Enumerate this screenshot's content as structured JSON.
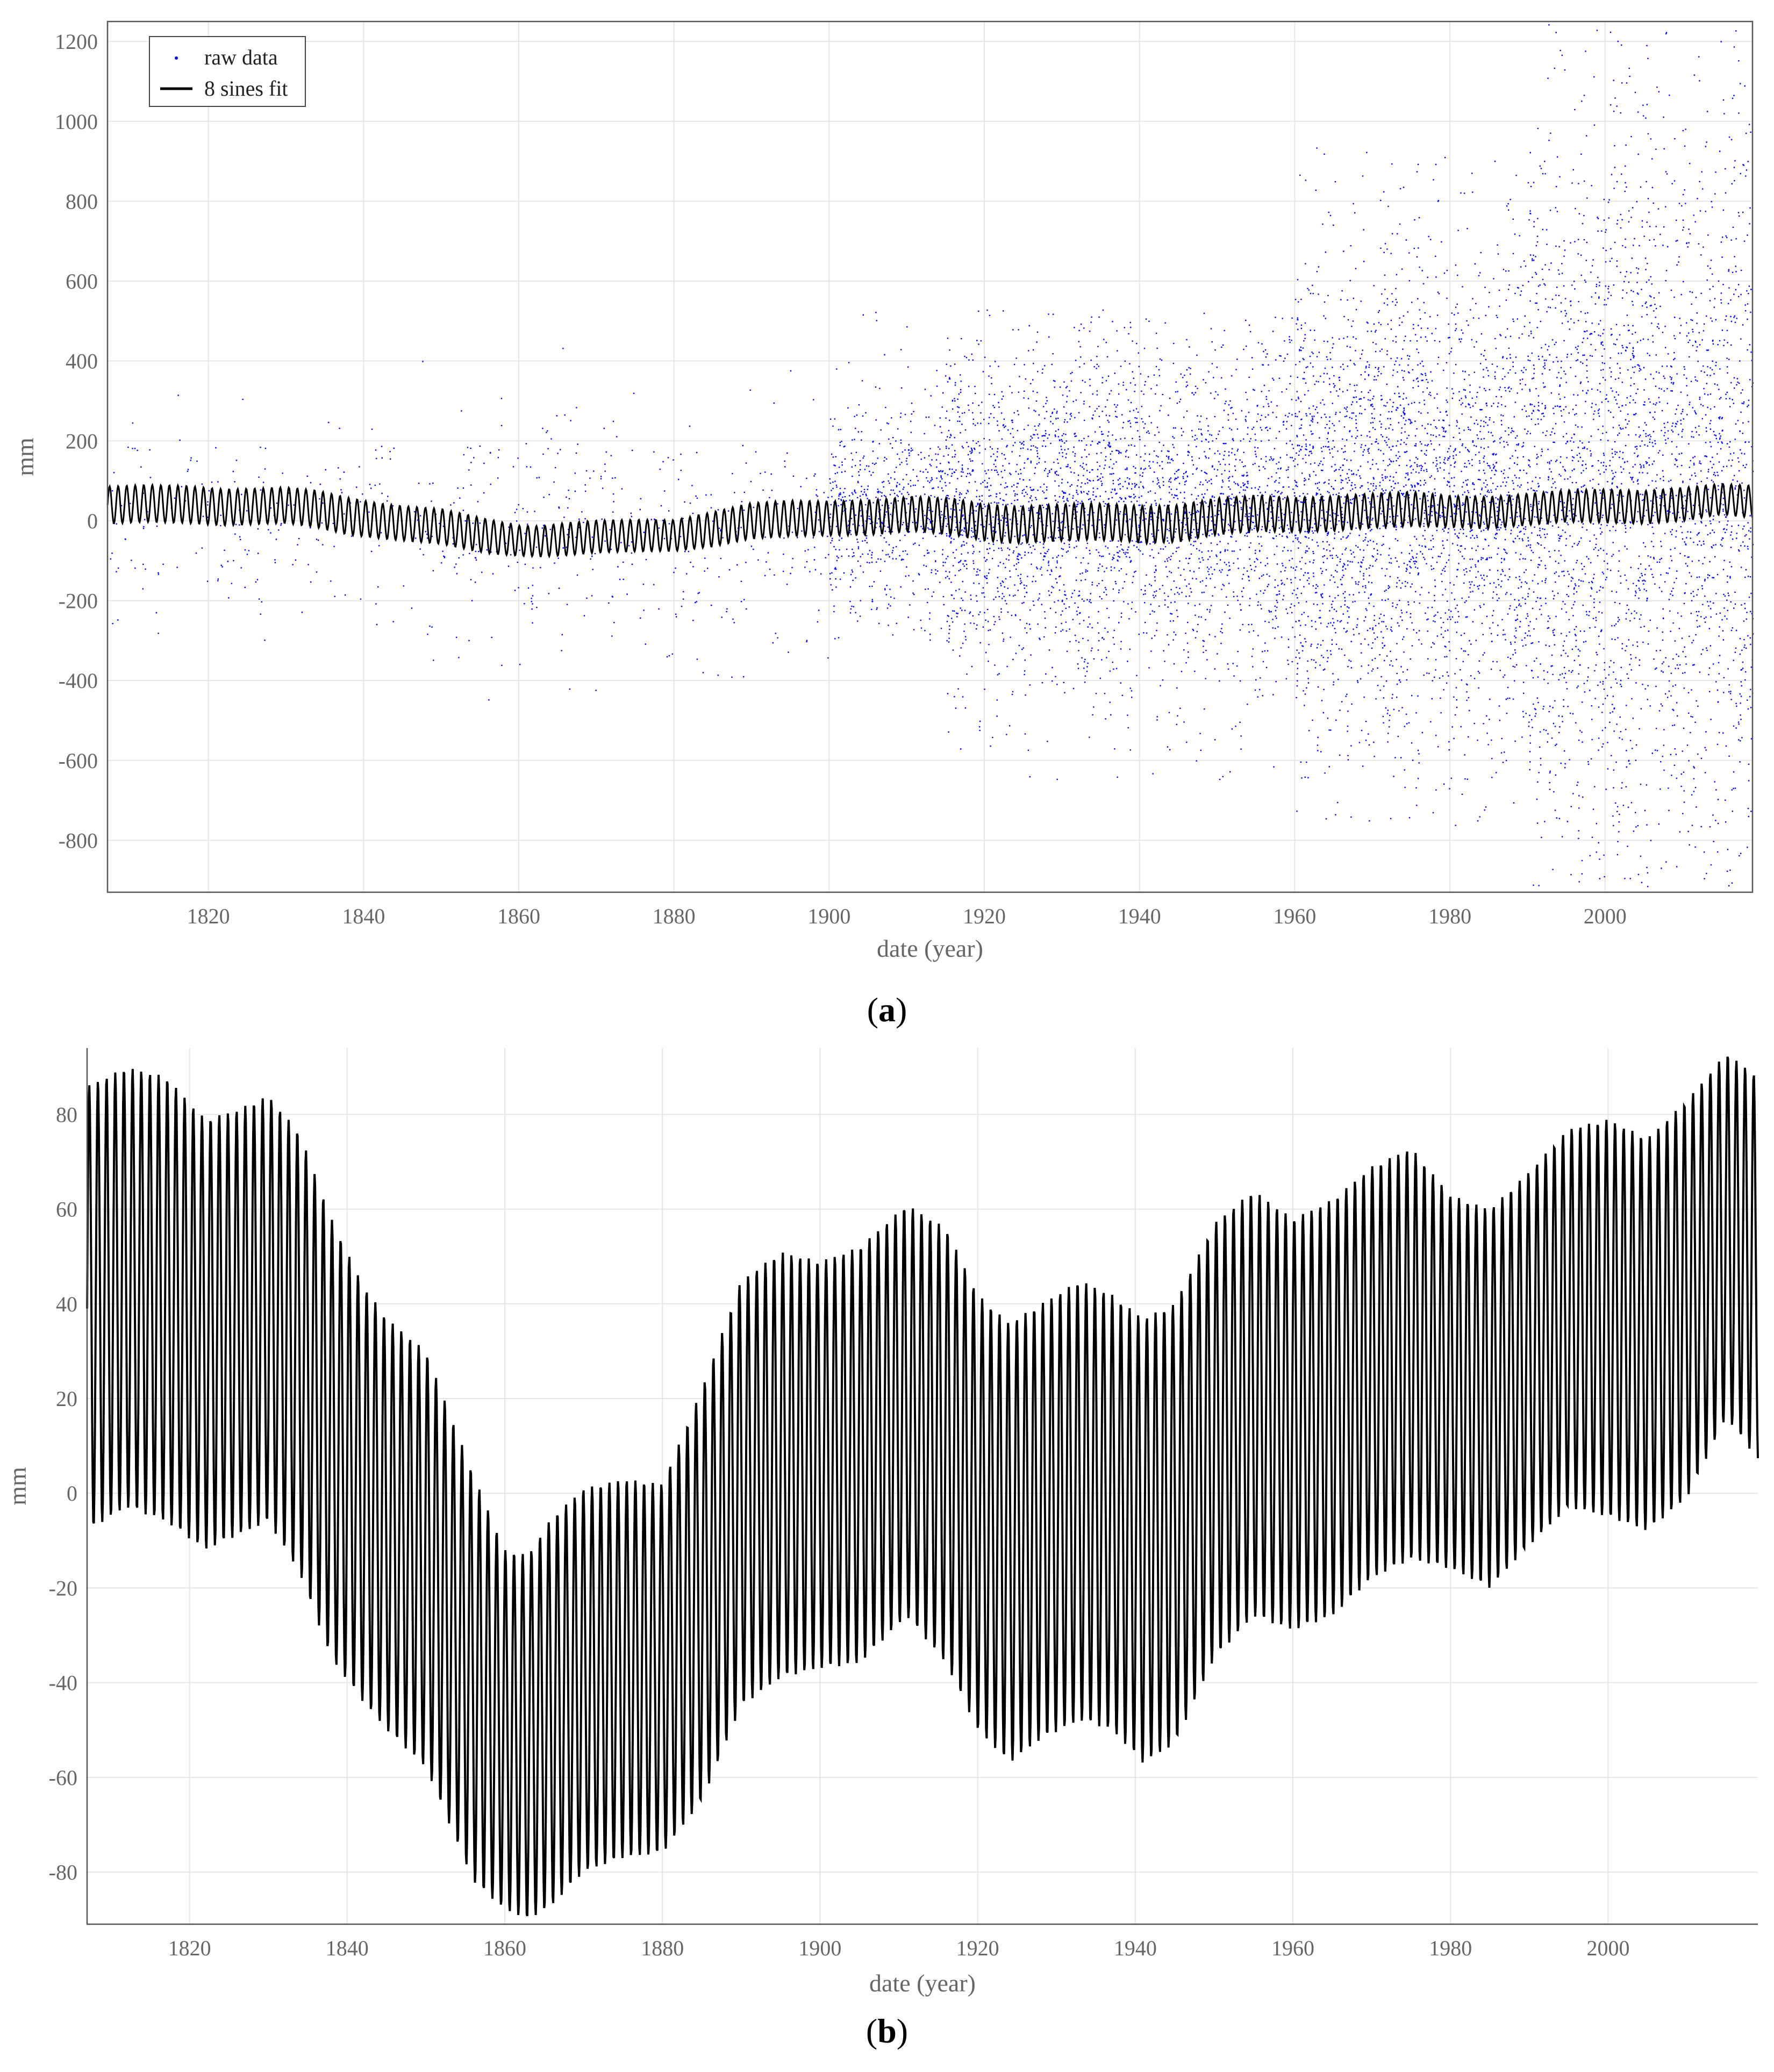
{
  "colors": {
    "raw_points": "#0000ff",
    "fit_line": "#000000",
    "grid": "#e6e6e6",
    "axis": "#555555",
    "text": "#666666"
  },
  "panels": {
    "a": {
      "label_prefix": "(",
      "label_letter": "a",
      "label_suffix": ")"
    },
    "b": {
      "label_prefix": "(",
      "label_letter": "b",
      "label_suffix": ")"
    }
  },
  "chart_data": [
    {
      "type": "scatter",
      "panel": "a",
      "xlabel": "date (year)",
      "ylabel": "mm",
      "xlim": [
        1807,
        2019
      ],
      "ylim": [
        -930,
        1250
      ],
      "x_ticks": [
        1820,
        1840,
        1860,
        1880,
        1900,
        1920,
        1940,
        1960,
        1980,
        2000
      ],
      "y_ticks": [
        -800,
        -600,
        -400,
        -200,
        0,
        200,
        400,
        600,
        800,
        1000,
        1200
      ],
      "grid": true,
      "legend": {
        "position": "top-left",
        "entries": [
          "raw data",
          "8 sines fit"
        ]
      },
      "series": [
        {
          "name": "raw data",
          "marker": "dot",
          "color": "#0000ff",
          "points_shown_approx": 26000,
          "spread_by_period": [
            {
              "years": [
                1807,
                1848
              ],
              "center_mm": 0,
              "typical_spread_mm": [
                -250,
                300
              ],
              "extremes_mm": [
                -300,
                430
              ]
            },
            {
              "years": [
                1848,
                1900
              ],
              "center_mm": -40,
              "typical_spread_mm": [
                -400,
                250
              ],
              "extremes_mm": [
                -480,
                440
              ]
            },
            {
              "years": [
                1900,
                1915
              ],
              "center_mm": 20,
              "typical_spread_mm": [
                -300,
                350
              ],
              "extremes_mm": [
                -300,
                560
              ]
            },
            {
              "years": [
                1915,
                1960
              ],
              "center_mm": 30,
              "typical_spread_mm": [
                -550,
                420
              ],
              "extremes_mm": [
                -660,
                530
              ]
            },
            {
              "years": [
                1960,
                1990
              ],
              "center_mm": 50,
              "typical_spread_mm": [
                -650,
                700
              ],
              "extremes_mm": [
                -770,
                940
              ]
            },
            {
              "years": [
                1990,
                2019
              ],
              "center_mm": 80,
              "typical_spread_mm": [
                -850,
                1200
              ],
              "extremes_mm": [
                -920,
                1250
              ]
            }
          ]
        },
        {
          "name": "8 sines fit",
          "line": "solid",
          "color": "#000000",
          "oscillation_period_years": 1.1,
          "envelope_max_mm": {
            "x": [
              1807,
              1812,
              1817,
              1822,
              1826,
              1830,
              1834,
              1838,
              1842,
              1845,
              1850,
              1856,
              1860,
              1863,
              1866,
              1870,
              1875,
              1880,
              1885,
              1890,
              1895,
              1900,
              1905,
              1911,
              1916,
              1920,
              1924,
              1928,
              1933,
              1937,
              1941,
              1945,
              1950,
              1955,
              1960,
              1965,
              1970,
              1975,
              1980,
              1985,
              1990,
              1995,
              2000,
              2005,
              2010,
              2015,
              2019
            ],
            "y": [
              86,
              90,
              88,
              79,
              81,
              84,
              76,
              58,
              44,
              37,
              30,
              4,
              -12,
              -13,
              -5,
              1,
              3,
              2,
              22,
              45,
              51,
              49,
              52,
              61,
              56,
              42,
              36,
              40,
              45,
              42,
              37,
              40,
              57,
              64,
              58,
              62,
              69,
              73,
              63,
              60,
              68,
              77,
              79,
              75,
              83,
              93,
              88
            ]
          },
          "envelope_min_mm": {
            "x": [
              1807,
              1812,
              1817,
              1822,
              1826,
              1830,
              1834,
              1838,
              1842,
              1845,
              1850,
              1856,
              1860,
              1863,
              1866,
              1870,
              1875,
              1880,
              1885,
              1890,
              1895,
              1900,
              1905,
              1911,
              1916,
              1920,
              1924,
              1928,
              1933,
              1937,
              1941,
              1945,
              1950,
              1955,
              1960,
              1965,
              1970,
              1975,
              1980,
              1985,
              1990,
              1995,
              2000,
              2005,
              2010,
              2015,
              2019
            ],
            "y": [
              -8,
              -3,
              -6,
              -12,
              -9,
              -6,
              -17,
              -35,
              -44,
              -50,
              -58,
              -82,
              -88,
              -90,
              -87,
              -80,
              -77,
              -76,
              -65,
              -45,
              -39,
              -37,
              -36,
              -26,
              -36,
              -50,
              -57,
              -52,
              -48,
              -50,
              -57,
              -53,
              -35,
              -26,
              -29,
              -26,
              -18,
              -14,
              -16,
              -20,
              -11,
              -3,
              -5,
              -8,
              -1,
              16,
              7
            ]
          }
        }
      ]
    },
    {
      "type": "line",
      "panel": "b",
      "xlabel": "date (year)",
      "ylabel": "mm",
      "xlim": [
        1807,
        2019
      ],
      "ylim": [
        -91,
        94
      ],
      "x_ticks": [
        1820,
        1840,
        1860,
        1880,
        1900,
        1920,
        1940,
        1960,
        1980,
        2000
      ],
      "y_ticks": [
        -80,
        -60,
        -40,
        -20,
        0,
        20,
        40,
        60,
        80
      ],
      "grid": true,
      "series": [
        {
          "line": "solid",
          "color": "#000000",
          "oscillation_period_years": 1.1,
          "envelope_max_mm": {
            "x": [
              1807,
              1812,
              1817,
              1822,
              1826,
              1830,
              1834,
              1838,
              1842,
              1845,
              1850,
              1856,
              1860,
              1863,
              1866,
              1870,
              1875,
              1880,
              1885,
              1890,
              1895,
              1900,
              1905,
              1911,
              1916,
              1920,
              1924,
              1928,
              1933,
              1937,
              1941,
              1945,
              1950,
              1955,
              1960,
              1965,
              1970,
              1975,
              1980,
              1985,
              1990,
              1995,
              2000,
              2005,
              2010,
              2015,
              2019
            ],
            "y": [
              86,
              90,
              88,
              79,
              81,
              84,
              76,
              58,
              44,
              37,
              30,
              4,
              -12,
              -13,
              -5,
              1,
              3,
              2,
              22,
              45,
              51,
              49,
              52,
              61,
              56,
              42,
              36,
              40,
              45,
              42,
              37,
              40,
              57,
              64,
              58,
              62,
              69,
              73,
              63,
              60,
              68,
              77,
              79,
              75,
              83,
              93,
              88
            ]
          },
          "envelope_min_mm": {
            "x": [
              1807,
              1812,
              1817,
              1822,
              1826,
              1830,
              1834,
              1838,
              1842,
              1845,
              1850,
              1856,
              1860,
              1863,
              1866,
              1870,
              1875,
              1880,
              1885,
              1890,
              1895,
              1900,
              1905,
              1911,
              1916,
              1920,
              1924,
              1928,
              1933,
              1937,
              1941,
              1945,
              1950,
              1955,
              1960,
              1965,
              1970,
              1975,
              1980,
              1985,
              1990,
              1995,
              2000,
              2005,
              2010,
              2015,
              2019
            ],
            "y": [
              -8,
              -3,
              -6,
              -12,
              -9,
              -6,
              -17,
              -35,
              -44,
              -50,
              -58,
              -82,
              -88,
              -90,
              -87,
              -80,
              -77,
              -76,
              -65,
              -45,
              -39,
              -37,
              -36,
              -26,
              -36,
              -50,
              -57,
              -52,
              -48,
              -50,
              -57,
              -53,
              -35,
              -26,
              -29,
              -26,
              -18,
              -14,
              -16,
              -20,
              -11,
              -3,
              -5,
              -8,
              -1,
              16,
              7
            ]
          }
        }
      ]
    }
  ]
}
